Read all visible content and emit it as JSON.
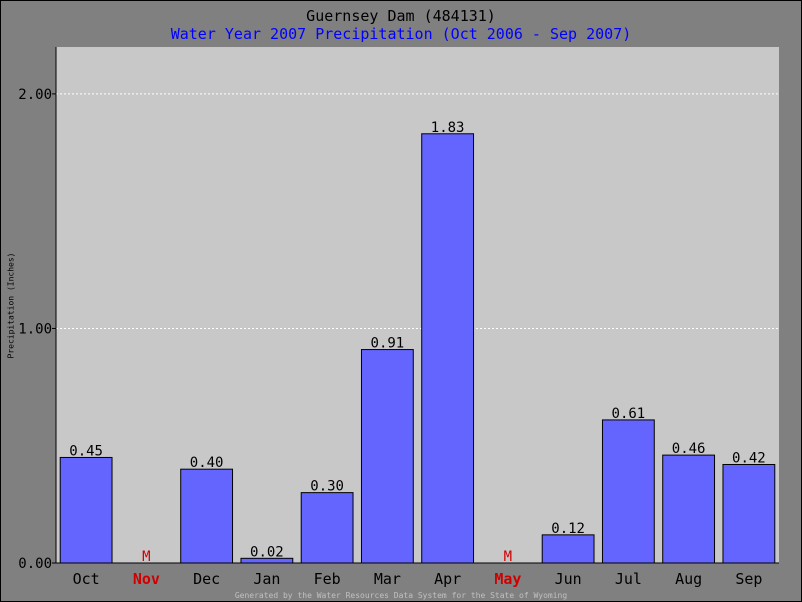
{
  "header": {
    "title": "Guernsey Dam   (484131)",
    "subtitle": "Water Year 2007 Precipitation (Oct 2006 - Sep 2007)"
  },
  "footer": "Generated by the Water Resources Data System for the State of Wyoming",
  "colors": {
    "plot_background": "#c8c8c8",
    "bar_fill": "#6464ff",
    "missing_color": "#d00000",
    "gridline": "#ffffff"
  },
  "chart_data": {
    "type": "bar",
    "ylabel": "Precipitation (Inches)",
    "xlabel": "",
    "ylim": [
      0,
      2.2
    ],
    "yticks": [
      "0.00",
      "1.00",
      "2.00"
    ],
    "ytick_values": [
      0,
      1,
      2
    ],
    "grid": "horizontal dotted",
    "missing_marker": "M",
    "categories": [
      "Oct",
      "Nov",
      "Dec",
      "Jan",
      "Feb",
      "Mar",
      "Apr",
      "May",
      "Jun",
      "Jul",
      "Aug",
      "Sep"
    ],
    "values": [
      0.45,
      null,
      0.4,
      0.02,
      0.3,
      0.91,
      1.83,
      null,
      0.12,
      0.61,
      0.46,
      0.42
    ],
    "value_labels": [
      "0.45",
      "M",
      "0.40",
      "0.02",
      "0.30",
      "0.91",
      "1.83",
      "M",
      "0.12",
      "0.61",
      "0.46",
      "0.42"
    ],
    "missing": [
      false,
      true,
      false,
      false,
      false,
      false,
      false,
      true,
      false,
      false,
      false,
      false
    ]
  }
}
